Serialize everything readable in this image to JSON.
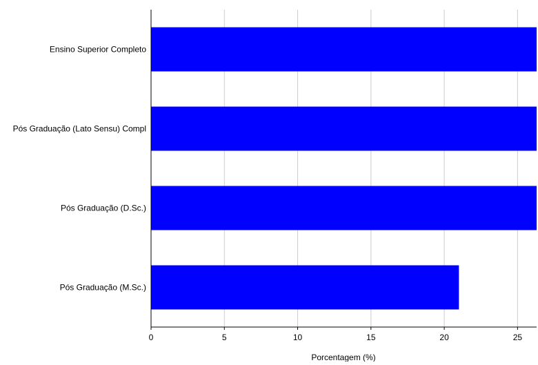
{
  "chart_data": {
    "type": "bar",
    "orientation": "horizontal",
    "categories": [
      "Ensino Superior Completo",
      "Pós Graduação (Lato Sensu) Compl",
      "Pós Graduação (D.Sc.)",
      "Pós Graduação (M.Sc.)"
    ],
    "values": [
      26.3,
      26.3,
      26.3,
      21.0
    ],
    "title": "",
    "xlabel": "Porcentagem (%)",
    "ylabel": "",
    "xlim": [
      0,
      26.3
    ],
    "xticks": [
      0,
      5,
      10,
      15,
      20,
      25
    ],
    "xtick_labels": [
      "0",
      "5",
      "10",
      "15",
      "20",
      "25"
    ],
    "grid": "vertical",
    "bar_color": "#0000ff",
    "grid_color": "#cccccc"
  }
}
